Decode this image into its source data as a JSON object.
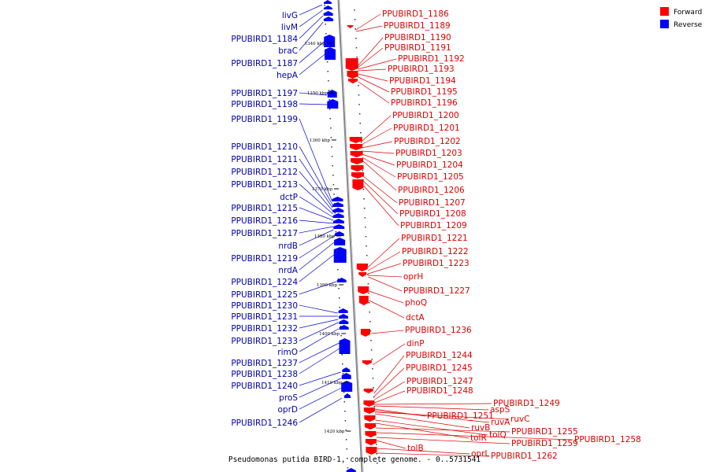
{
  "caption": "Pseudomonas putida BIRD-1, complete genome. - 0..5731541",
  "legend": [
    {
      "label": "Forward",
      "color": "#ff0000"
    },
    {
      "label": "Reverse",
      "color": "#0000ff"
    }
  ],
  "colors": {
    "forward_label": "#dd0000",
    "reverse_label": "#0000aa",
    "backbone": "#999999"
  },
  "ticks": [
    "1340 kbp",
    "1350 kbp",
    "1360 kbp",
    "1370 kbp",
    "1380 kbp",
    "1390 kbp",
    "1400 kbp",
    "1410 kbp",
    "1420 kbp"
  ],
  "reverse_labels": [
    "livG",
    "livM",
    "PPUBIRD1_1184",
    "braC",
    "PPUBIRD1_1187",
    "hepA",
    "PPUBIRD1_1197",
    "PPUBIRD1_1198",
    "PPUBIRD1_1199",
    "PPUBIRD1_1210",
    "PPUBIRD1_1211",
    "PPUBIRD1_1212",
    "PPUBIRD1_1213",
    "dctP",
    "PPUBIRD1_1215",
    "PPUBIRD1_1216",
    "PPUBIRD1_1217",
    "nrdB",
    "PPUBIRD1_1219",
    "nrdA",
    "PPUBIRD1_1224",
    "PPUBIRD1_1225",
    "PPUBIRD1_1230",
    "PPUBIRD1_1231",
    "PPUBIRD1_1232",
    "PPUBIRD1_1233",
    "rimO",
    "PPUBIRD1_1237",
    "PPUBIRD1_1238",
    "PPUBIRD1_1240",
    "proS",
    "oprD",
    "PPUBIRD1_1246"
  ],
  "forward_labels": [
    "PPUBIRD1_1186",
    "PPUBIRD1_1189",
    "PPUBIRD1_1190",
    "PPUBIRD1_1191",
    "PPUBIRD1_1192",
    "PPUBIRD1_1193",
    "PPUBIRD1_1194",
    "PPUBIRD1_1195",
    "PPUBIRD1_1196",
    "PPUBIRD1_1200",
    "PPUBIRD1_1201",
    "PPUBIRD1_1202",
    "PPUBIRD1_1203",
    "PPUBIRD1_1204",
    "PPUBIRD1_1205",
    "PPUBIRD1_1206",
    "PPUBIRD1_1207",
    "PPUBIRD1_1208",
    "PPUBIRD1_1209",
    "PPUBIRD1_1221",
    "PPUBIRD1_1222",
    "PPUBIRD1_1223",
    "oprH",
    "PPUBIRD1_1227",
    "phoQ",
    "dctA",
    "PPUBIRD1_1236",
    "dinP",
    "PPUBIRD1_1244",
    "PPUBIRD1_1245",
    "PPUBIRD1_1247",
    "PPUBIRD1_1248",
    "PPUBIRD1_1249",
    "aspS",
    "PPUBIRD1_1251",
    "ruvA",
    "ruvC",
    "ruvB",
    "tolQ",
    "tolR",
    "PPUBIRD1_1255",
    "PPUBIRD1_1258",
    "PPUBIRD1_1259",
    "tolB",
    "oprL",
    "PPUBIRD1_1262"
  ]
}
